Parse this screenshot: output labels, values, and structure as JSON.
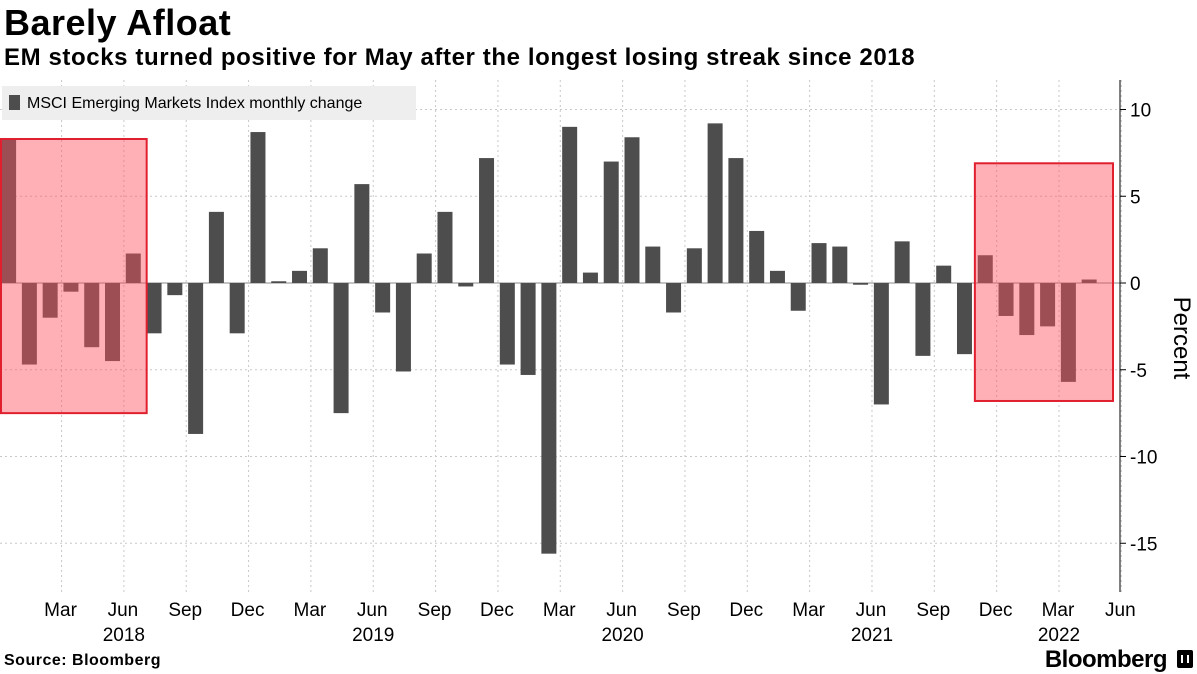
{
  "header": {
    "title": "Barely Afloat",
    "subtitle": "EM stocks turned positive for May after the longest losing streak since 2018"
  },
  "footer": {
    "source": "Source: Bloomberg",
    "brand": "Bloomberg"
  },
  "chart_data": {
    "type": "bar",
    "title": "Barely Afloat",
    "subtitle": "EM stocks turned positive for May after the longest losing streak since 2018",
    "legend": [
      "MSCI Emerging Markets Index monthly change"
    ],
    "legend_position": "top-left",
    "ylabel": "Percent",
    "ylim": [
      -17.5,
      10.5
    ],
    "yticks": [
      10,
      5,
      0,
      -5,
      -10,
      -15
    ],
    "ytick_labels": [
      "10",
      "5",
      "0",
      "-5",
      "-10",
      "-15"
    ],
    "grid": true,
    "x_tick_labels": [
      "Mar",
      "Jun",
      "Sep",
      "Dec",
      "Mar",
      "Jun",
      "Sep",
      "Dec",
      "Mar",
      "Jun",
      "Sep",
      "Dec",
      "Mar",
      "Jun",
      "Sep",
      "Dec",
      "Mar",
      "Jun"
    ],
    "x_tick_indices": [
      2,
      5,
      8,
      11,
      14,
      17,
      20,
      23,
      26,
      29,
      32,
      35,
      38,
      41,
      44,
      47,
      50,
      53
    ],
    "x_year_labels": [
      {
        "label": "2018",
        "index": 5
      },
      {
        "label": "2019",
        "index": 17
      },
      {
        "label": "2020",
        "index": 29
      },
      {
        "label": "2021",
        "index": 41
      },
      {
        "label": "2022",
        "index": 50
      }
    ],
    "categories": [
      "Jan 2018",
      "Feb 2018",
      "Mar 2018",
      "Apr 2018",
      "May 2018",
      "Jun 2018",
      "Jul 2018",
      "Aug 2018",
      "Sep 2018",
      "Oct 2018",
      "Nov 2018",
      "Dec 2018",
      "Jan 2019",
      "Feb 2019",
      "Mar 2019",
      "Apr 2019",
      "May 2019",
      "Jun 2019",
      "Jul 2019",
      "Aug 2019",
      "Sep 2019",
      "Oct 2019",
      "Nov 2019",
      "Dec 2019",
      "Jan 2020",
      "Feb 2020",
      "Mar 2020",
      "Apr 2020",
      "May 2020",
      "Jun 2020",
      "Jul 2020",
      "Aug 2020",
      "Sep 2020",
      "Oct 2020",
      "Nov 2020",
      "Dec 2020",
      "Jan 2021",
      "Feb 2021",
      "Mar 2021",
      "Apr 2021",
      "May 2021",
      "Jun 2021",
      "Jul 2021",
      "Aug 2021",
      "Sep 2021",
      "Oct 2021",
      "Nov 2021",
      "Dec 2021",
      "Jan 2022",
      "Feb 2022",
      "Mar 2022",
      "Apr 2022",
      "May 2022"
    ],
    "values": [
      8.3,
      -4.7,
      -2.0,
      -0.5,
      -3.7,
      -4.5,
      1.7,
      -2.9,
      -0.7,
      -8.7,
      4.1,
      -2.9,
      8.7,
      0.1,
      0.7,
      2.0,
      -7.5,
      5.7,
      -1.7,
      -5.1,
      1.7,
      4.1,
      -0.2,
      7.2,
      -4.7,
      -5.3,
      -15.6,
      9.0,
      0.6,
      7.0,
      8.4,
      2.1,
      -1.7,
      2.0,
      9.2,
      7.2,
      3.0,
      0.7,
      -1.6,
      2.3,
      2.1,
      -0.1,
      -7.0,
      2.4,
      -4.2,
      1.0,
      -4.1,
      1.6,
      -1.9,
      -3.0,
      -2.5,
      -5.7,
      0.2
    ],
    "highlight_ranges": [
      {
        "start_index": 0,
        "end_index": 6,
        "ymin": -7.5,
        "ymax": 8.3,
        "color": "#ff4d5e"
      },
      {
        "start_index": 47,
        "end_index": 53,
        "ymin": -6.8,
        "ymax": 6.9,
        "color": "#ff4d5e"
      }
    ],
    "colors": {
      "bar": "#4d4d4d",
      "grid": "#c8c8c8",
      "legend_bg": "#eeeeee",
      "highlight": "#ff4d5e"
    }
  }
}
